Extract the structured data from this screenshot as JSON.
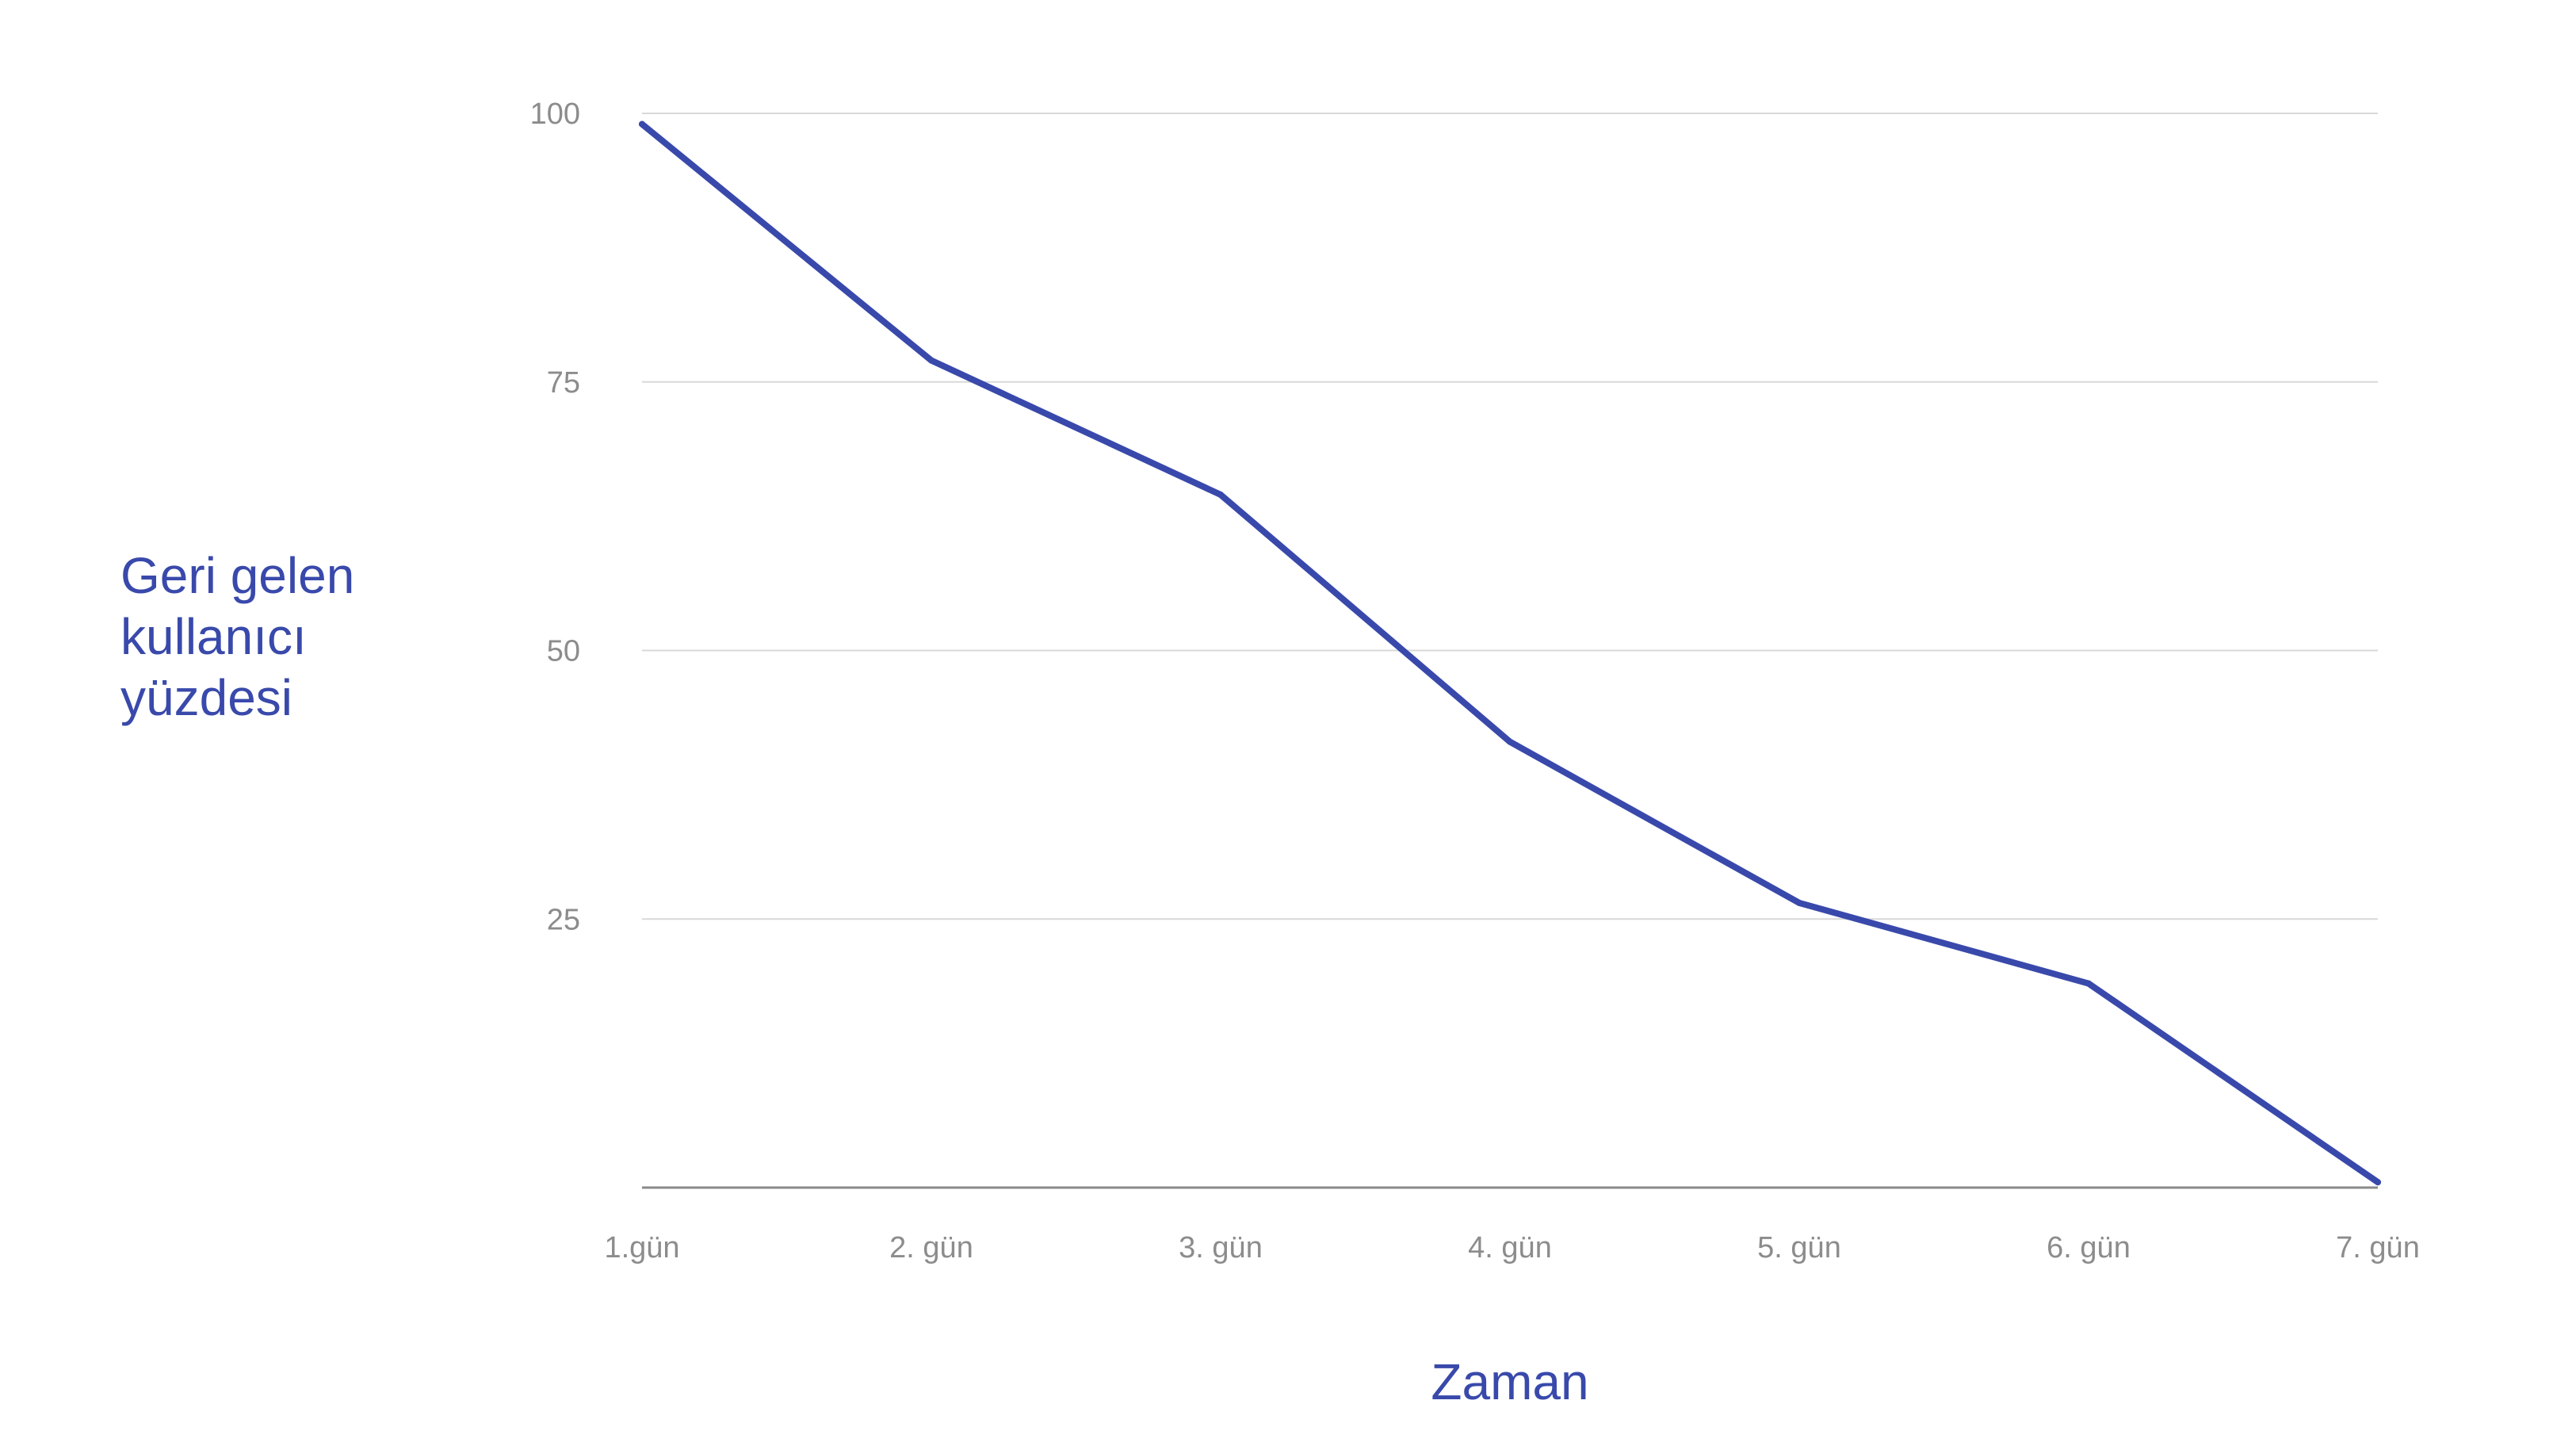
{
  "chart_data": {
    "type": "line",
    "categories": [
      "1.gün",
      "2. gün",
      "3. gün",
      "4. gün",
      "5. gün",
      "6. gün",
      "7. gün"
    ],
    "series": [
      {
        "values": [
          99,
          77,
          64.5,
          41.5,
          26.5,
          19,
          0.5
        ]
      }
    ],
    "xlabel": "Zaman",
    "ylabel": [
      "Geri gelen",
      "kullanıcı",
      "yüzdesi"
    ],
    "ylim": [
      0,
      100
    ],
    "yticks": [
      25,
      50,
      75,
      100
    ],
    "ytick_labels": [
      "25",
      "50",
      "75",
      "100"
    ],
    "grid": true,
    "legend": "none",
    "colors": {
      "line": "#3949ab",
      "title": "#3949ab",
      "tick": "#8c8c8c",
      "grid": "#d9d9d9",
      "baseline": "#8a8a8a"
    }
  }
}
